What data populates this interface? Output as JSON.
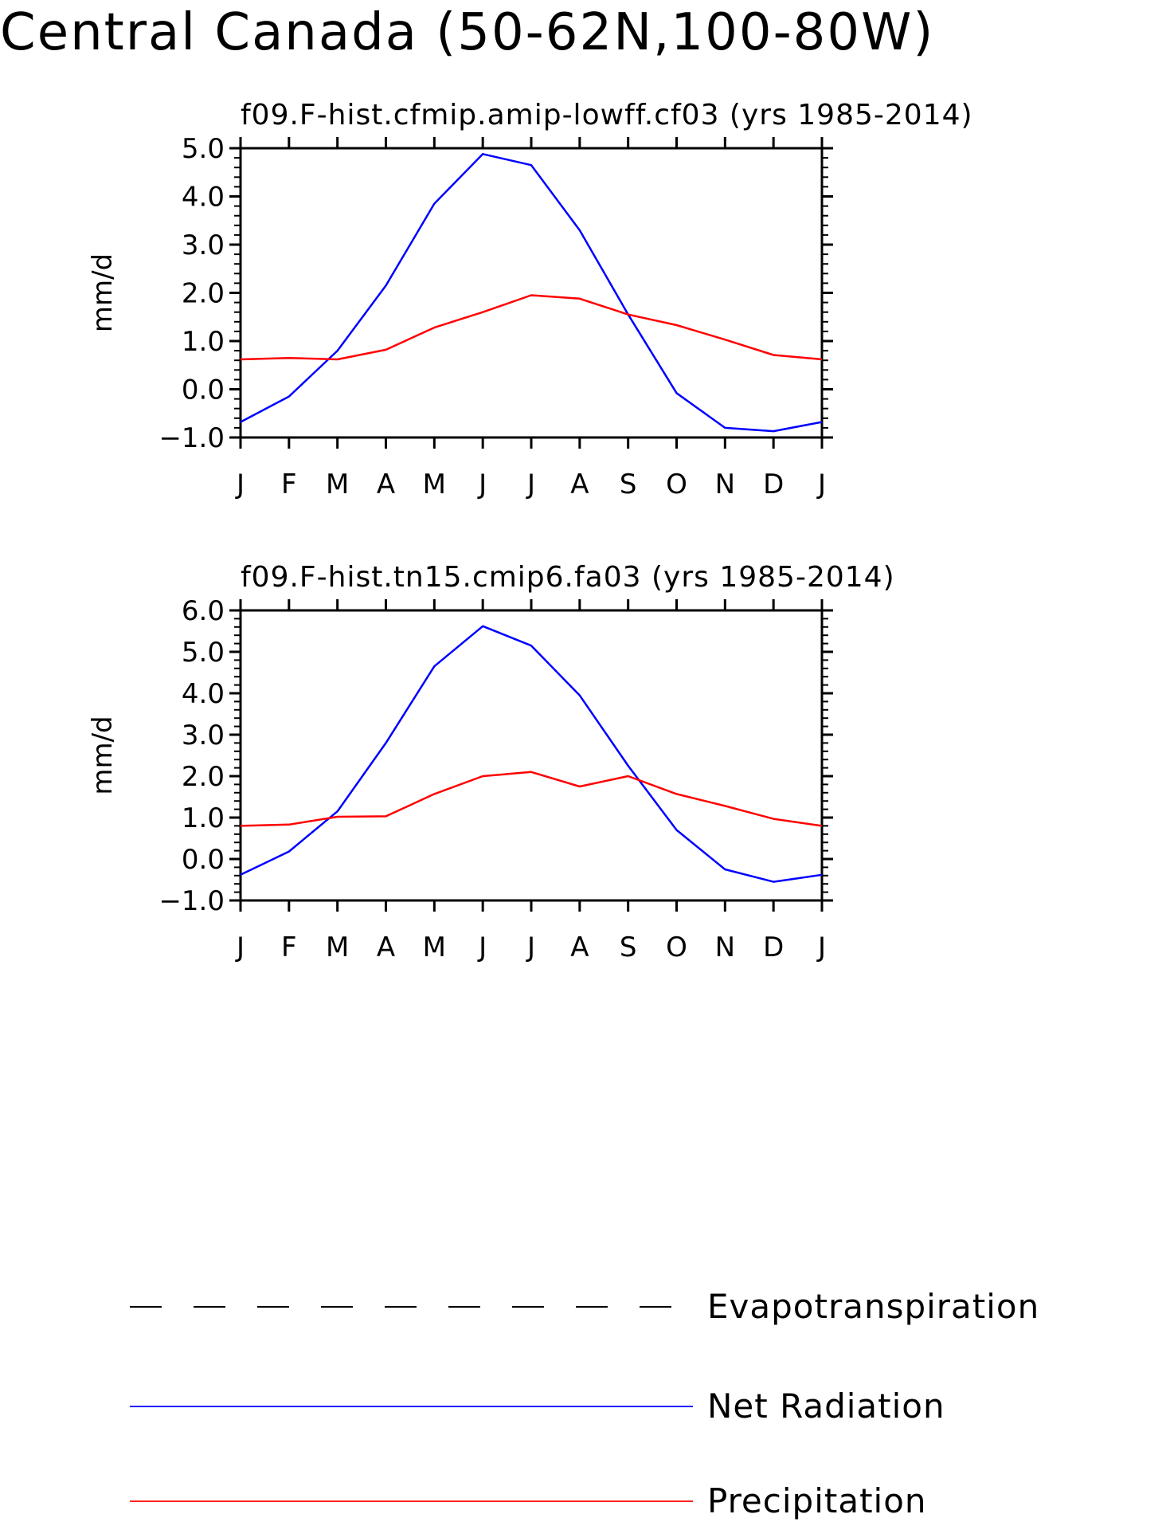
{
  "page": {
    "title": "Central Canada (50-62N,100-80W)"
  },
  "chart_data": [
    {
      "type": "line",
      "title": "f09.F-hist.cfmip.amip-lowff.cf03 (yrs 1985-2014)",
      "xlabel": "",
      "ylabel": "mm/d",
      "categories": [
        "J",
        "F",
        "M",
        "A",
        "M",
        "J",
        "J",
        "A",
        "S",
        "O",
        "N",
        "D",
        "J"
      ],
      "ylim": [
        -1.0,
        5.0
      ],
      "yticks": [
        "-1.0",
        "0.0",
        "1.0",
        "2.0",
        "3.0",
        "4.0",
        "5.0"
      ],
      "grid": false,
      "series": [
        {
          "name": "Net Radiation",
          "color": "#0000ff",
          "values": [
            -0.68,
            -0.15,
            0.8,
            2.15,
            3.85,
            4.88,
            4.65,
            3.3,
            1.55,
            -0.08,
            -0.8,
            -0.87,
            -0.68
          ]
        },
        {
          "name": "Precipitation",
          "color": "#ff0000",
          "values": [
            0.62,
            0.65,
            0.62,
            0.82,
            1.28,
            1.6,
            1.95,
            1.88,
            1.55,
            1.33,
            1.03,
            0.71,
            0.62
          ]
        }
      ]
    },
    {
      "type": "line",
      "title": "f09.F-hist.tn15.cmip6.fa03 (yrs 1985-2014)",
      "xlabel": "",
      "ylabel": "mm/d",
      "categories": [
        "J",
        "F",
        "M",
        "A",
        "M",
        "J",
        "J",
        "A",
        "S",
        "O",
        "N",
        "D",
        "J"
      ],
      "ylim": [
        -1.0,
        6.0
      ],
      "yticks": [
        "-1.0",
        "0.0",
        "1.0",
        "2.0",
        "3.0",
        "4.0",
        "5.0",
        "6.0"
      ],
      "grid": false,
      "series": [
        {
          "name": "Net Radiation",
          "color": "#0000ff",
          "values": [
            -0.38,
            0.18,
            1.15,
            2.8,
            4.65,
            5.62,
            5.15,
            3.95,
            2.25,
            0.7,
            -0.25,
            -0.55,
            -0.38
          ]
        },
        {
          "name": "Precipitation",
          "color": "#ff0000",
          "values": [
            0.8,
            0.83,
            1.02,
            1.03,
            1.57,
            2.0,
            2.1,
            1.75,
            2.0,
            1.57,
            1.28,
            0.97,
            0.8
          ]
        }
      ]
    }
  ],
  "legend": {
    "position": "bottom",
    "items": [
      {
        "label": "Evapotranspiration",
        "color": "#000000",
        "style": "dashed"
      },
      {
        "label": "Net Radiation",
        "color": "#0000ff",
        "style": "solid"
      },
      {
        "label": "Precipitation",
        "color": "#ff0000",
        "style": "solid"
      }
    ]
  }
}
